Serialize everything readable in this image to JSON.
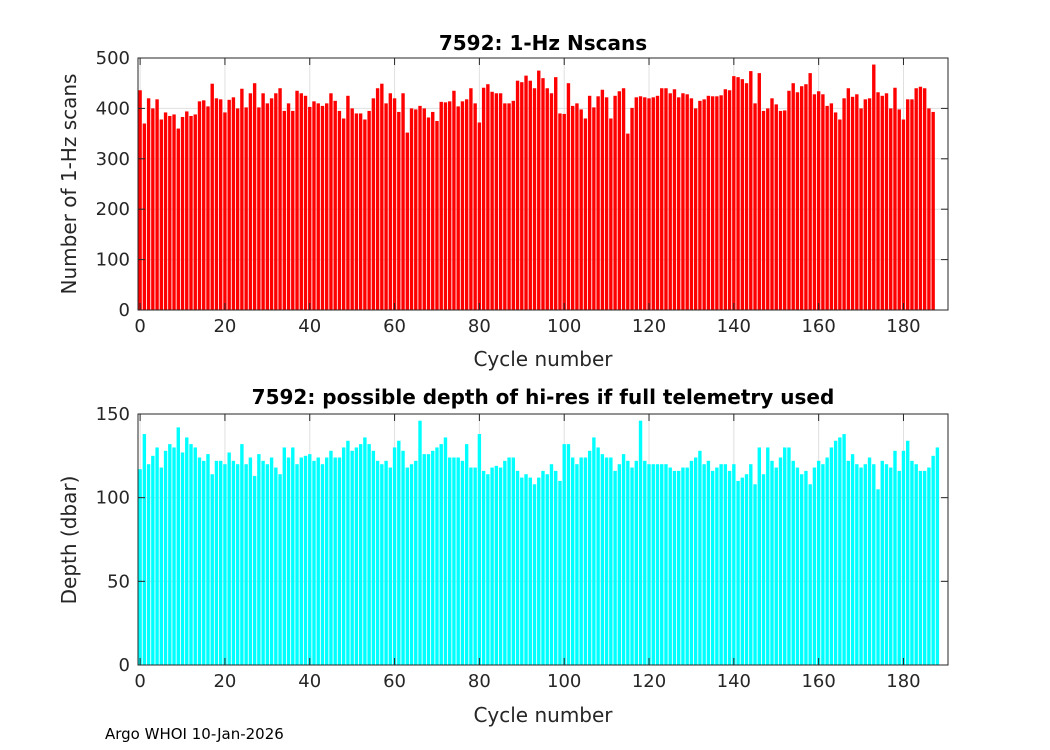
{
  "footer": "Argo WHOI 10-Jan-2026",
  "chart_data": [
    {
      "type": "bar",
      "title": "7592: 1-Hz Nscans",
      "xlabel": "Cycle number",
      "ylabel": "Number of 1-Hz scans",
      "color": "#ff0000",
      "xlim": [
        -0.5,
        190.5
      ],
      "ylim": [
        0,
        500
      ],
      "xticks": [
        0,
        20,
        40,
        60,
        80,
        100,
        120,
        140,
        160,
        180
      ],
      "yticks": [
        0,
        100,
        200,
        300,
        400,
        500
      ],
      "grid": true,
      "x_start": 0,
      "values": [
        436,
        370,
        420,
        400,
        418,
        378,
        392,
        385,
        388,
        360,
        383,
        394,
        385,
        388,
        414,
        416,
        404,
        449,
        420,
        418,
        392,
        417,
        422,
        400,
        439,
        402,
        430,
        450,
        402,
        430,
        410,
        420,
        430,
        440,
        395,
        410,
        395,
        435,
        430,
        425,
        403,
        414,
        410,
        405,
        410,
        430,
        415,
        395,
        380,
        425,
        400,
        390,
        390,
        378,
        395,
        420,
        440,
        449,
        410,
        430,
        420,
        393,
        430,
        352,
        400,
        398,
        405,
        400,
        382,
        393,
        375,
        413,
        412,
        414,
        435,
        404,
        414,
        418,
        440,
        410,
        372,
        441,
        448,
        433,
        430,
        430,
        410,
        410,
        415,
        455,
        452,
        465,
        455,
        440,
        475,
        460,
        440,
        430,
        462,
        390,
        389,
        450,
        405,
        410,
        398,
        380,
        425,
        402,
        424,
        437,
        422,
        380,
        425,
        434,
        440,
        350,
        401,
        422,
        424,
        422,
        420,
        422,
        425,
        440,
        440,
        430,
        438,
        422,
        430,
        428,
        420,
        400,
        415,
        418,
        425,
        424,
        424,
        426,
        438,
        436,
        464,
        462,
        458,
        450,
        474,
        410,
        470,
        395,
        400,
        420,
        408,
        395,
        396,
        435,
        450,
        432,
        444,
        448,
        470,
        428,
        434,
        428,
        405,
        410,
        392,
        378,
        420,
        440,
        423,
        428,
        400,
        418,
        420,
        487,
        432,
        425,
        430,
        400,
        441,
        398,
        378,
        418,
        418,
        440,
        443,
        440,
        400,
        393
      ]
    },
    {
      "type": "bar",
      "title": "7592: possible depth of hi-res if full telemetry used",
      "xlabel": "Cycle number",
      "ylabel": "Depth (dbar)",
      "color": "#00ffff",
      "xlim": [
        -0.5,
        190.5
      ],
      "ylim": [
        0,
        150
      ],
      "xticks": [
        0,
        20,
        40,
        60,
        80,
        100,
        120,
        140,
        160,
        180
      ],
      "yticks": [
        0,
        50,
        100,
        150
      ],
      "grid": true,
      "x_start": 0,
      "values": [
        117,
        138,
        120,
        125,
        130,
        118,
        128,
        132,
        130,
        142,
        127,
        136,
        132,
        130,
        124,
        122,
        126,
        114,
        122,
        122,
        120,
        127,
        122,
        120,
        132,
        120,
        124,
        113,
        126,
        122,
        120,
        124,
        118,
        114,
        130,
        124,
        130,
        120,
        124,
        125,
        126,
        122,
        124,
        120,
        124,
        128,
        124,
        124,
        130,
        134,
        128,
        130,
        132,
        136,
        132,
        128,
        122,
        120,
        122,
        118,
        130,
        134,
        128,
        118,
        120,
        122,
        146,
        126,
        126,
        128,
        130,
        132,
        136,
        124,
        124,
        124,
        122,
        132,
        118,
        118,
        138,
        116,
        114,
        118,
        119,
        118,
        122,
        124,
        124,
        116,
        112,
        114,
        112,
        108,
        112,
        116,
        114,
        120,
        116,
        110,
        132,
        132,
        124,
        120,
        124,
        124,
        128,
        136,
        130,
        126,
        124,
        124,
        116,
        120,
        126,
        122,
        118,
        122,
        146,
        122,
        120,
        120,
        120,
        120,
        120,
        118,
        116,
        116,
        118,
        118,
        122,
        124,
        128,
        120,
        122,
        116,
        118,
        120,
        120,
        116,
        120,
        110,
        112,
        114,
        120,
        108,
        130,
        114,
        130,
        122,
        118,
        124,
        130,
        130,
        122,
        118,
        114,
        116,
        108,
        118,
        122,
        120,
        124,
        130,
        134,
        136,
        138,
        122,
        126,
        120,
        118,
        120,
        124,
        120,
        105,
        122,
        120,
        118,
        128,
        116,
        128,
        134,
        122,
        120,
        116,
        116,
        118,
        125,
        130
      ]
    }
  ]
}
